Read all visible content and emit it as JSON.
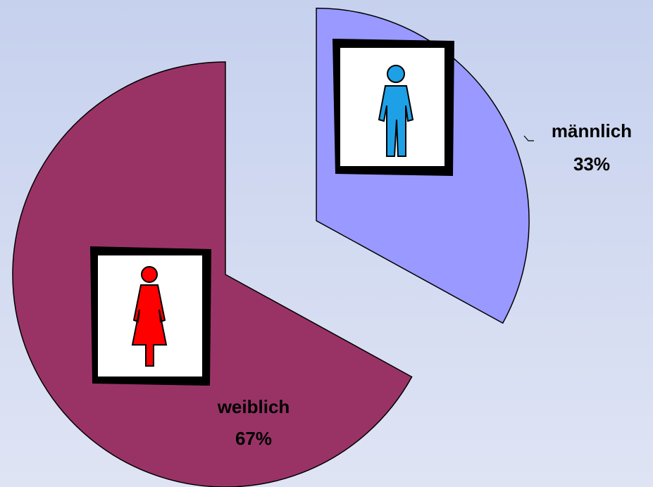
{
  "chart_data": {
    "type": "pie",
    "categories": [
      "männlich",
      "weiblich"
    ],
    "values": [
      33,
      67
    ],
    "value_labels": [
      "33%",
      "67%"
    ],
    "colors": [
      "#9999ff",
      "#993366"
    ]
  }
}
